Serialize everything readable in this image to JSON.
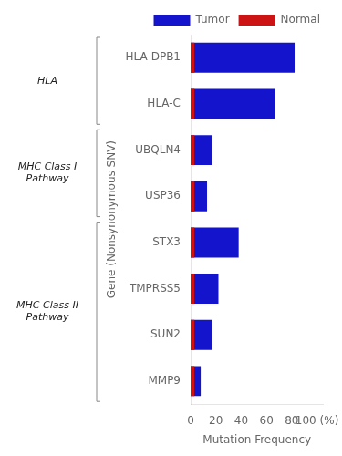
{
  "chart_data": {
    "type": "bar",
    "orientation": "horizontal",
    "categories": [
      "HLA-DPB1",
      "HLA-C",
      "UBQLN4",
      "USP36",
      "STX3",
      "TMPRSS5",
      "SUN2",
      "MMP9"
    ],
    "series": [
      {
        "name": "Tumor",
        "color": "#1414cc",
        "values": [
          83,
          67,
          17,
          13,
          38,
          22,
          17,
          8
        ]
      },
      {
        "name": "Normal",
        "color": "#cc1414",
        "values": [
          3,
          3,
          3,
          3,
          3,
          3,
          3,
          3
        ]
      }
    ],
    "groups": [
      {
        "name": "HLA",
        "categories": [
          "HLA-DPB1",
          "HLA-C"
        ]
      },
      {
        "name": "MHC Class I Pathway",
        "categories": [
          "UBQLN4",
          "USP36"
        ]
      },
      {
        "name": "MHC Class II Pathway",
        "categories": [
          "STX3",
          "TMPRSS5",
          "SUN2",
          "MMP9"
        ]
      }
    ],
    "xlabel": "Mutation Frequency",
    "ylabel": "Gene (Nonsynonymous SNV)",
    "xlim": [
      0,
      105
    ],
    "xticks": [
      0,
      20,
      40,
      60,
      80,
      {
        "value": 100,
        "label": "100 (%)"
      }
    ],
    "legend": "upper right",
    "grid": false
  }
}
